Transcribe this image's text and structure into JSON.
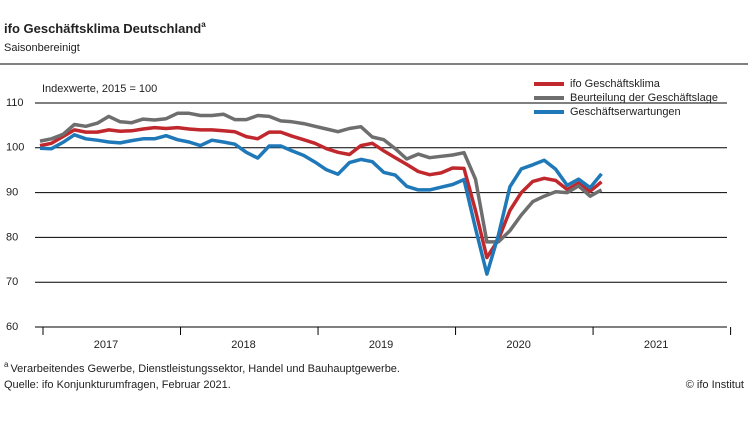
{
  "chart_data": {
    "type": "line",
    "title": "ifo Geschäftsklima Deutschland",
    "title_marker": "a",
    "subtitle": "Saisonbereinigt",
    "y_label": "Indexwerte, 2015 = 100",
    "footnote": "Verarbeitendes Gewerbe, Dienstleistungssektor, Handel und Bauhauptgewerbe.",
    "source": "Quelle: ifo Konjunkturumfragen, Februar 2021.",
    "credit": "© ifo Institut",
    "categories": [
      null,
      null,
      null,
      null,
      null,
      null,
      "2017",
      null,
      null,
      null,
      null,
      null,
      null,
      null,
      null,
      null,
      null,
      null,
      "2018",
      null,
      null,
      null,
      null,
      null,
      null,
      null,
      null,
      null,
      null,
      null,
      "2019",
      null,
      null,
      null,
      null,
      null,
      null,
      null,
      null,
      null,
      null,
      null,
      "2020",
      null,
      null,
      null,
      null,
      null,
      null,
      null,
      null,
      null,
      null,
      null,
      "2021",
      null,
      null,
      null,
      null,
      null
    ],
    "ylim": [
      60,
      110
    ],
    "yticks": [
      60,
      70,
      80,
      90,
      100,
      110
    ],
    "grid": true,
    "legend": "top-right",
    "series": [
      {
        "name": "ifo Geschäftsklima",
        "color": "#c0282e",
        "values": [
          100.5,
          101,
          102.5,
          104,
          103.5,
          103.5,
          104,
          103.7,
          103.8,
          104.2,
          104.5,
          104.3,
          104.5,
          104.2,
          104,
          104,
          103.8,
          103.6,
          102.5,
          102,
          103.5,
          103.5,
          102.6,
          101.8,
          101,
          99.8,
          99,
          98.5,
          100.5,
          101,
          99.3,
          97.8,
          96.3,
          94.7,
          94,
          94.4,
          95.5,
          95.4,
          86,
          75.5,
          79.5,
          86,
          90,
          92.5,
          93.2,
          92.7,
          90.7,
          92.1,
          90.3,
          92.4,
          null,
          null,
          null,
          null,
          null,
          null,
          null,
          null,
          null,
          null
        ]
      },
      {
        "name": "Beurteilung der Geschäftslage",
        "color": "#6e6e6e",
        "values": [
          101.5,
          102,
          103,
          105.2,
          104.8,
          105.5,
          107,
          105.8,
          105.6,
          106.4,
          106.2,
          106.5,
          107.7,
          107.7,
          107.2,
          107.2,
          107.5,
          106.3,
          106.3,
          107.2,
          107,
          106,
          105.8,
          105.4,
          104.8,
          104.2,
          103.6,
          104.3,
          104.7,
          102.4,
          101.8,
          99.8,
          97.5,
          98.6,
          97.8,
          98.1,
          98.4,
          98.9,
          93,
          79,
          79,
          81.5,
          85,
          88,
          89.2,
          90.2,
          90,
          91.5,
          89.2,
          90.6,
          null,
          null,
          null,
          null,
          null,
          null,
          null,
          null,
          null,
          null
        ]
      },
      {
        "name": "Geschäftserwartungen",
        "color": "#1f78b8",
        "values": [
          99.9,
          99.8,
          101.2,
          102.9,
          102,
          101.7,
          101.3,
          101.1,
          101.6,
          102,
          102,
          102.7,
          101.8,
          101.3,
          100.5,
          101.7,
          101.3,
          100.8,
          99,
          97.7,
          100.4,
          100.4,
          99.3,
          98.3,
          96.8,
          95.1,
          94.1,
          96.7,
          97.4,
          96.9,
          94.5,
          93.9,
          91.4,
          90.6,
          90.6,
          91.2,
          91.8,
          92.9,
          82,
          71.8,
          80.5,
          91.3,
          95.3,
          96.2,
          97.2,
          95.2,
          91.6,
          93,
          91.1,
          94.2,
          null,
          null,
          null,
          null,
          null,
          null,
          null,
          null,
          null,
          null
        ]
      }
    ]
  }
}
